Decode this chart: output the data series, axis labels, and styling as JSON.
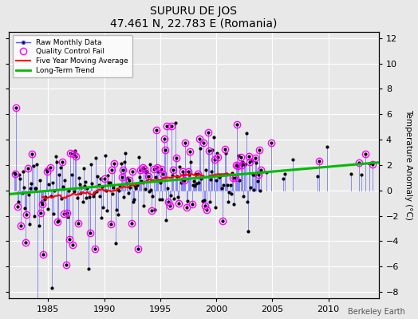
{
  "title": "SUPURU DE JOS",
  "subtitle": "47.461 N, 22.783 E (Romania)",
  "credit": "Berkeley Earth",
  "ylabel": "Temperature Anomaly (°C)",
  "xlim": [
    1981.5,
    2014.5
  ],
  "ylim": [
    -8.5,
    12.5
  ],
  "yticks": [
    -8,
    -6,
    -4,
    -2,
    0,
    2,
    4,
    6,
    8,
    10,
    12
  ],
  "xticks": [
    1985,
    1990,
    1995,
    2000,
    2005,
    2010
  ],
  "bg_color": "#e8e8e8",
  "stem_color": "#5555ff",
  "dot_color": "#000000",
  "qc_color": "#ff00ff",
  "moving_avg_color": "#ff0000",
  "trend_color": "#00bb00",
  "data_start_year": 1982,
  "data_end_year": 2003,
  "sparse_start": 2004,
  "sparse_end": 2013,
  "trend_x": [
    1981.5,
    2014.5
  ],
  "trend_y": [
    -0.3,
    2.2
  ],
  "seed": 137
}
